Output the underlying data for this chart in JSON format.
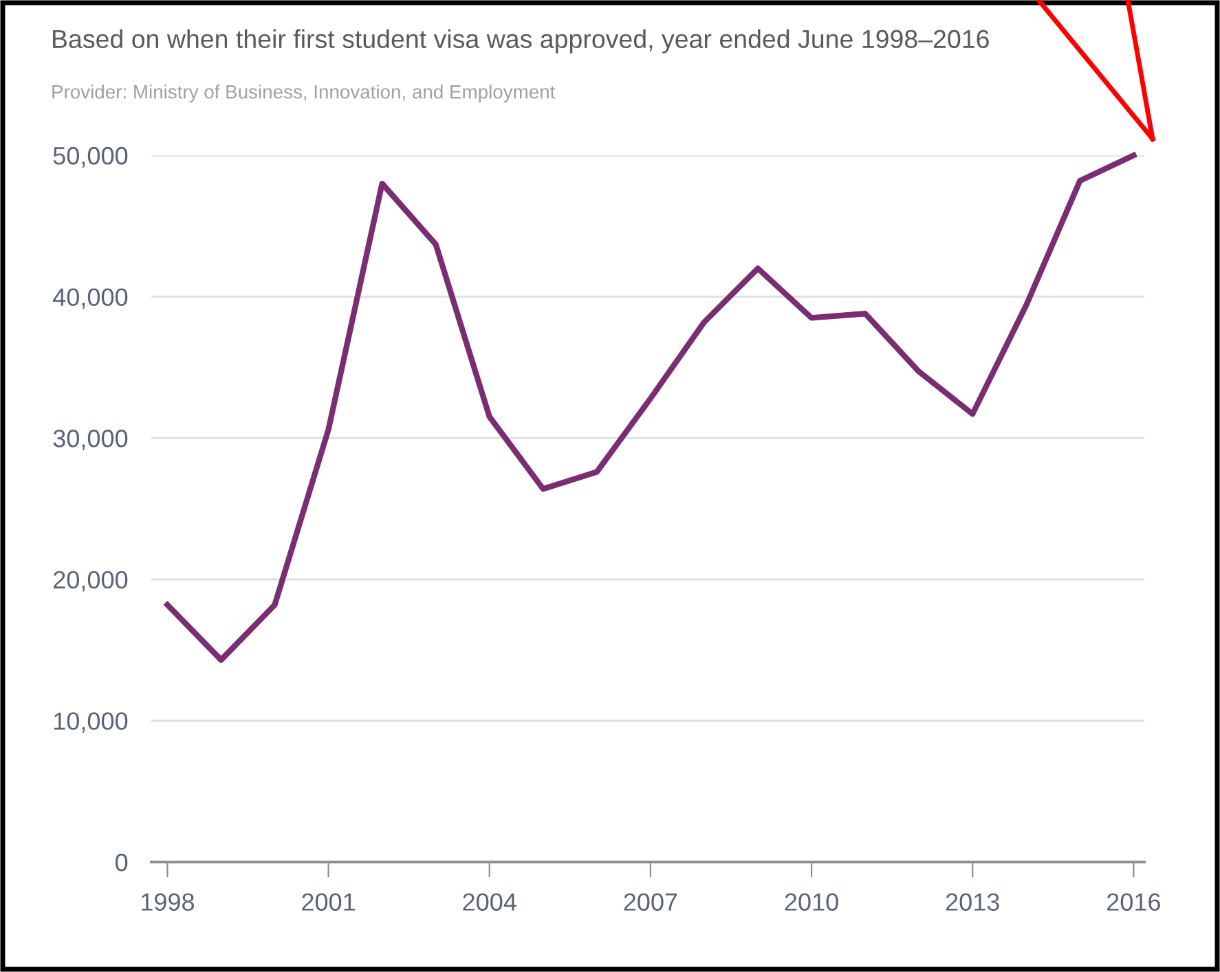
{
  "chart_data": {
    "type": "line",
    "title": "Based on when their first student visa was approved, year ended June 1998–2016",
    "subtitle": "Provider: Ministry of Business, Innovation, and Employment",
    "x": [
      1998,
      1999,
      2000,
      2001,
      2002,
      2003,
      2004,
      2005,
      2006,
      2007,
      2008,
      2009,
      2010,
      2011,
      2012,
      2013,
      2014,
      2015,
      2016
    ],
    "series": [
      {
        "color": "#7b2d72",
        "values": [
          18200,
          14300,
          18200,
          30600,
          48000,
          43700,
          31500,
          26400,
          27600,
          32800,
          38200,
          42000,
          38500,
          38800,
          34700,
          31700,
          39400,
          48200,
          50000
        ]
      }
    ],
    "xlim": [
      1997.7,
      2016.2
    ],
    "xticks": [
      1998,
      2001,
      2004,
      2007,
      2010,
      2013,
      2016
    ],
    "ylim": [
      0,
      50000
    ],
    "yticks": [
      {
        "value": 0,
        "label": "0"
      },
      {
        "value": 10000,
        "label": "10,000"
      },
      {
        "value": 20000,
        "label": "20,000"
      },
      {
        "value": 30000,
        "label": "30,000"
      },
      {
        "value": 40000,
        "label": "40,000"
      },
      {
        "value": 50000,
        "label": "50,000"
      }
    ],
    "grid": "y",
    "legend": false,
    "marker": "none",
    "line_style": "solid"
  }
}
